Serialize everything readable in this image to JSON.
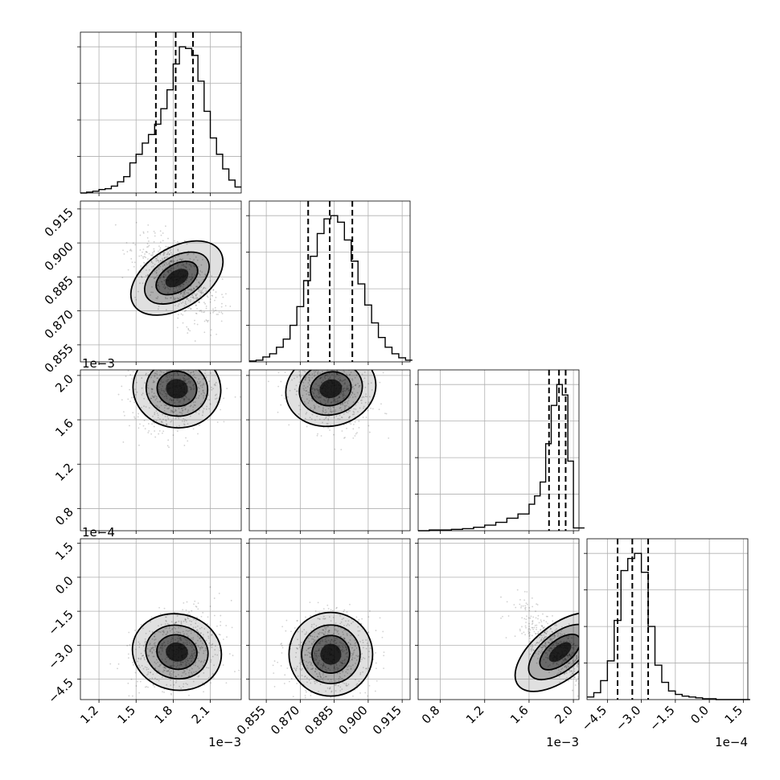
{
  "chart_data": {
    "type": "corner",
    "n_params": 4,
    "params": [
      {
        "index": 0,
        "range": [
          0.00105,
          0.00235
        ],
        "ticks": [
          0.0012,
          0.0015,
          0.0018,
          0.0021
        ],
        "tick_labels": [
          "1.2",
          "1.5",
          "1.8",
          "2.1"
        ],
        "offset_label": "1e−3"
      },
      {
        "index": 1,
        "range": [
          0.8475,
          0.9185
        ],
        "ticks": [
          0.855,
          0.87,
          0.885,
          0.9,
          0.915
        ],
        "tick_labels": [
          "0.855",
          "0.870",
          "0.885",
          "0.900",
          "0.915"
        ],
        "offset_label": ""
      },
      {
        "index": 2,
        "range": [
          0.0006,
          0.00205
        ],
        "ticks": [
          0.0008,
          0.0012,
          0.0016,
          0.002
        ],
        "tick_labels": [
          "0.8",
          "1.2",
          "1.6",
          "2.0"
        ],
        "offset_label": "1e−3"
      },
      {
        "index": 3,
        "range": [
          -0.00054,
          0.00017
        ],
        "ticks": [
          -0.00045,
          -0.0003,
          -0.00015,
          0.0,
          0.00015
        ],
        "tick_labels": [
          "−4.5",
          "−3.0",
          "−1.5",
          "0.0",
          "1.5"
        ],
        "offset_label": "1e−4"
      }
    ],
    "histograms": [
      {
        "param": 0,
        "bins": [
          0.00105,
          0.0011,
          0.00115,
          0.0012,
          0.00125,
          0.0013,
          0.00135,
          0.0014,
          0.00145,
          0.0015,
          0.00155,
          0.0016,
          0.00165,
          0.0017,
          0.00175,
          0.0018,
          0.00185,
          0.0019,
          0.00195,
          0.002,
          0.00205,
          0.0021,
          0.00215,
          0.0022,
          0.00225,
          0.0023
        ],
        "counts": [
          0,
          1,
          2,
          4,
          5,
          8,
          13,
          19,
          35,
          45,
          58,
          68,
          80,
          98,
          120,
          150,
          170,
          168,
          160,
          130,
          95,
          64,
          45,
          28,
          15,
          7
        ],
        "quantiles": [
          0.00166,
          0.00182,
          0.00196
        ]
      },
      {
        "param": 1,
        "bins": [
          0.8475,
          0.8505,
          0.8535,
          0.8565,
          0.8595,
          0.8625,
          0.8655,
          0.8685,
          0.8715,
          0.8745,
          0.8775,
          0.8805,
          0.8835,
          0.8865,
          0.8895,
          0.8925,
          0.8955,
          0.8985,
          0.9015,
          0.9045,
          0.9075,
          0.9105,
          0.9135,
          0.9165
        ],
        "counts": [
          1,
          2,
          6,
          10,
          18,
          28,
          45,
          68,
          100,
          130,
          158,
          176,
          180,
          172,
          150,
          124,
          96,
          70,
          48,
          30,
          18,
          10,
          5,
          2
        ],
        "quantiles": [
          0.8735,
          0.883,
          0.893
        ]
      },
      {
        "param": 2,
        "bins": [
          0.0006,
          0.0007,
          0.0008,
          0.0009,
          0.001,
          0.0011,
          0.0012,
          0.0013,
          0.0014,
          0.0015,
          0.0016,
          0.00165,
          0.0017,
          0.00175,
          0.0018,
          0.00185,
          0.0019,
          0.00195,
          0.002
        ],
        "counts": [
          0,
          1,
          1,
          2,
          3,
          5,
          8,
          12,
          18,
          24,
          38,
          50,
          70,
          125,
          180,
          210,
          195,
          100,
          4
        ],
        "quantiles": [
          0.00178,
          0.00187,
          0.00193
        ]
      },
      {
        "param": 3,
        "bins": [
          -0.00054,
          -0.00051,
          -0.00048,
          -0.00045,
          -0.00042,
          -0.00039,
          -0.00036,
          -0.00033,
          -0.0003,
          -0.00027,
          -0.00024,
          -0.00021,
          -0.00018,
          -0.00015,
          -0.00012,
          -9e-05,
          -6e-05,
          -3e-05,
          0.0,
          3e-05,
          6e-05,
          9e-05,
          0.00012,
          0.00015
        ],
        "counts": [
          3,
          8,
          22,
          45,
          92,
          150,
          164,
          170,
          148,
          85,
          40,
          20,
          10,
          6,
          4,
          3,
          2,
          1,
          1,
          0,
          0,
          0,
          0,
          0
        ],
        "quantiles": [
          -0.000405,
          -0.00034,
          -0.00027
        ]
      }
    ],
    "pairs": [
      {
        "x_param": 0,
        "y_param": 1,
        "center": [
          0.00183,
          0.8845
        ],
        "correlation": -0.62
      },
      {
        "x_param": 0,
        "y_param": 2,
        "center": [
          0.00183,
          0.00188
        ],
        "correlation": 0.15
      },
      {
        "x_param": 1,
        "y_param": 2,
        "center": [
          0.8835,
          0.00188
        ],
        "correlation": -0.25
      },
      {
        "x_param": 0,
        "y_param": 3,
        "center": [
          0.00183,
          -0.00033
        ],
        "correlation": 0.2
      },
      {
        "x_param": 1,
        "y_param": 3,
        "center": [
          0.8835,
          -0.00034
        ],
        "correlation": 0.0
      },
      {
        "x_param": 2,
        "y_param": 3,
        "center": [
          0.00188,
          -0.00033
        ],
        "correlation": -0.8
      }
    ],
    "grid": true
  }
}
